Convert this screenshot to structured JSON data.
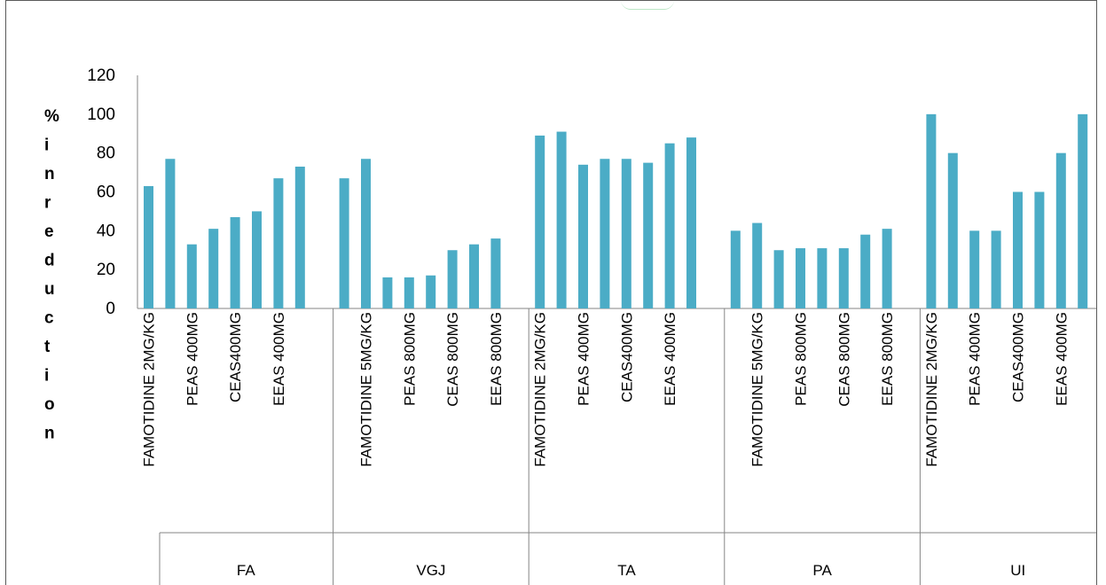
{
  "chart_data": {
    "type": "bar",
    "ylabel": "% in reduction",
    "ylabel_letters": [
      "%",
      "i",
      "n",
      "r",
      "e",
      "d",
      "u",
      "c",
      "t",
      "i",
      "o",
      "n"
    ],
    "ylim": [
      0,
      120
    ],
    "yticks": [
      0,
      20,
      40,
      60,
      80,
      100,
      120
    ],
    "grid": false,
    "legend": "none",
    "bar_color": "#4bacc6",
    "groups": [
      {
        "name": "FA",
        "categories": [
          "FAMOTIDINE 2MG/KG",
          "",
          "PEAS 400MG",
          "",
          "CEAS400MG",
          "",
          "EEAS 400MG",
          ""
        ],
        "values": [
          63,
          77,
          33,
          41,
          47,
          50,
          67,
          73
        ]
      },
      {
        "name": "VGJ",
        "categories": [
          "",
          "FAMOTIDINE 5MG/KG",
          "",
          "PEAS 800MG",
          "",
          "CEAS 800MG",
          "",
          "EEAS 800MG"
        ],
        "values": [
          67,
          77,
          16,
          16,
          17,
          30,
          33,
          36
        ]
      },
      {
        "name": "TA",
        "categories": [
          "FAMOTIDINE 2MG/KG",
          "",
          "PEAS 400MG",
          "",
          "CEAS400MG",
          "",
          "EEAS 400MG",
          ""
        ],
        "values": [
          89,
          91,
          74,
          77,
          77,
          75,
          85,
          88
        ]
      },
      {
        "name": "PA",
        "categories": [
          "",
          "FAMOTIDINE 5MG/KG",
          "",
          "PEAS 800MG",
          "",
          "CEAS 800MG",
          "",
          "EEAS 800MG"
        ],
        "values": [
          40,
          44,
          30,
          31,
          31,
          31,
          38,
          41
        ]
      },
      {
        "name": "UI",
        "categories": [
          "FAMOTIDINE 2MG/KG",
          "",
          "PEAS 400MG",
          "",
          "CEAS400MG",
          "",
          "EEAS 400MG",
          ""
        ],
        "values": [
          100,
          80,
          40,
          40,
          60,
          60,
          80,
          100
        ]
      }
    ]
  }
}
